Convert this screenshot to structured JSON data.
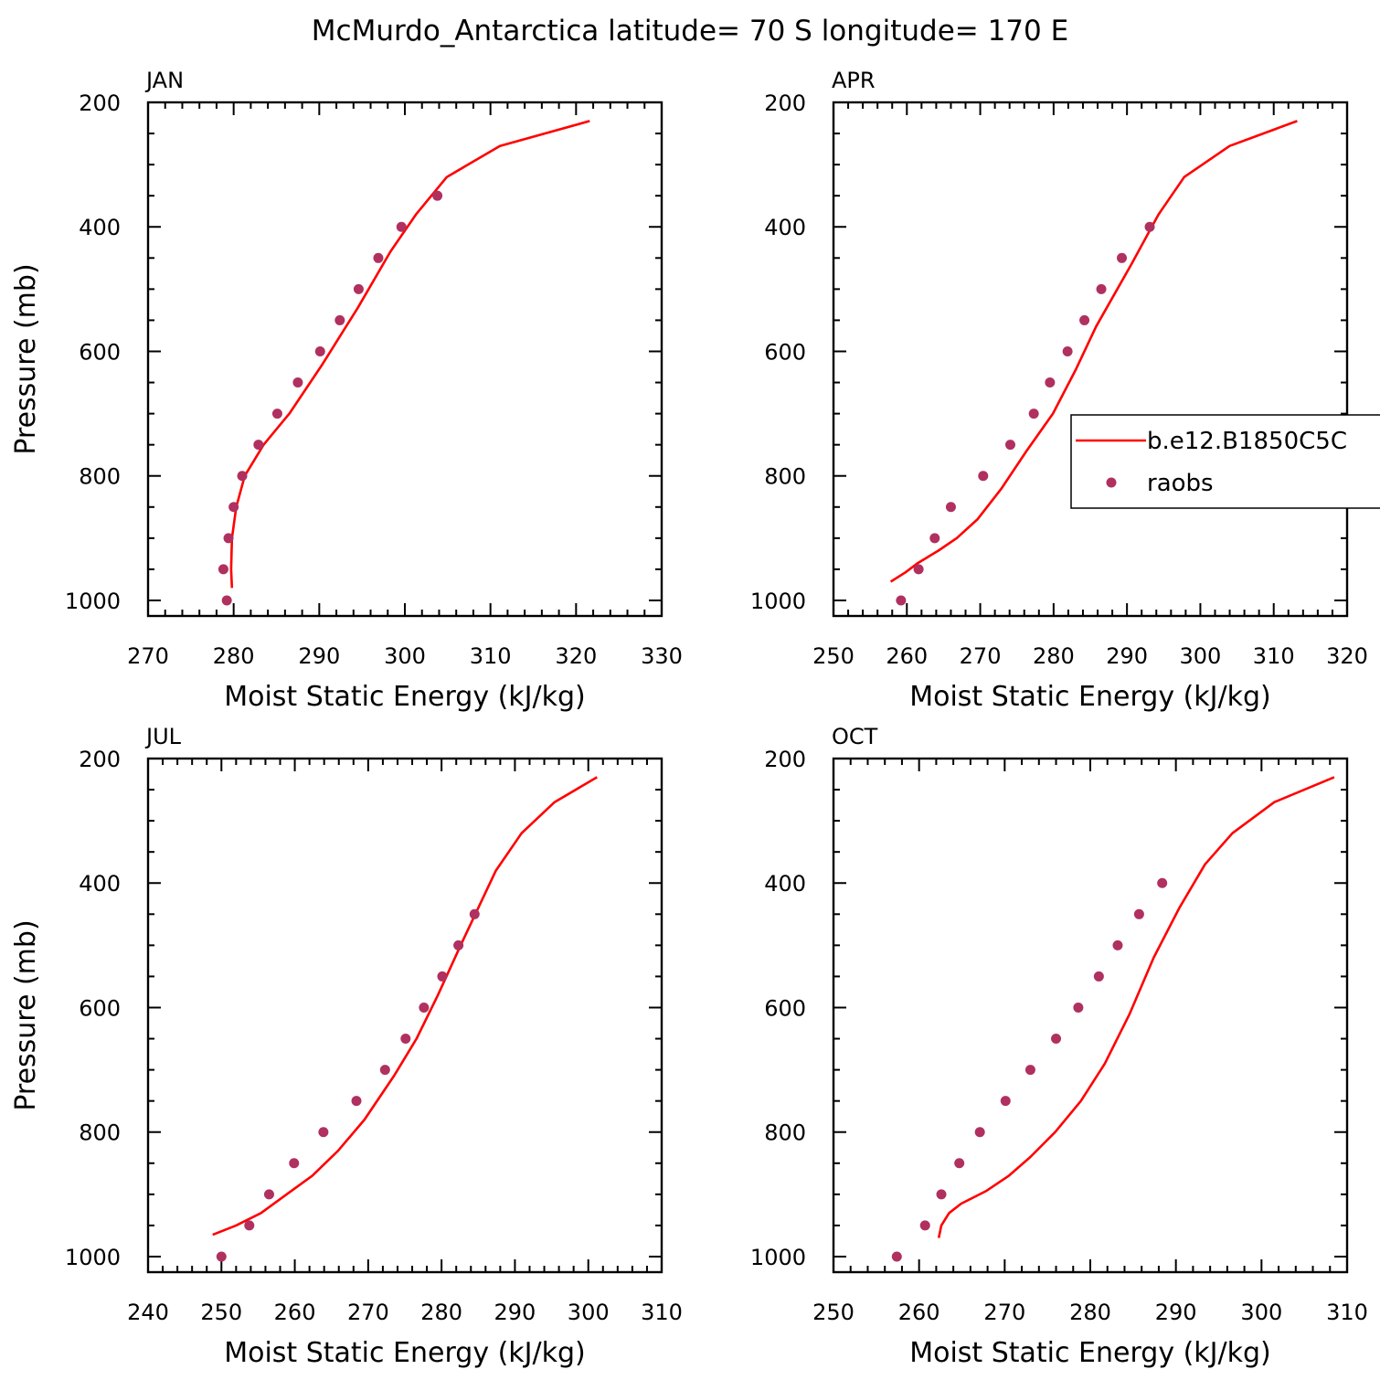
{
  "title": "McMurdo_Antarctica  latitude= 70 S longitude= 170 E",
  "colors": {
    "model_line": "#ff0000",
    "obs_marker": "#b03060",
    "axis": "#000000"
  },
  "legend": {
    "placement": "right-middle of APR panel, clipped at right edge",
    "entries": [
      {
        "label": "b.e12.B1850C5C",
        "style": "line"
      },
      {
        "label": "raobs",
        "style": "marker"
      }
    ]
  },
  "chart_data": [
    {
      "type": "line",
      "panel": "JAN",
      "title": "JAN",
      "xlabel": "Moist Static Energy (kJ/kg)",
      "ylabel": "Pressure (mb)",
      "xlim": [
        270,
        330
      ],
      "ylim": [
        1025,
        200
      ],
      "y_inverted": true,
      "xticks": [
        270,
        280,
        290,
        300,
        310,
        320,
        330
      ],
      "yticks": [
        200,
        400,
        600,
        800,
        1000
      ],
      "grid": false,
      "series": [
        {
          "name": "b.e12.B1850C5C",
          "style": "line",
          "x": [
            279.8,
            279.7,
            279.8,
            280.3,
            281.3,
            283.5,
            286.5,
            290.4,
            294.5,
            298.3,
            301.3,
            304.9,
            311.1,
            321.6
          ],
          "y": [
            980,
            950,
            900,
            850,
            800,
            750,
            700,
            620,
            530,
            440,
            380,
            320,
            270,
            230
          ]
        },
        {
          "name": "raobs",
          "style": "marker",
          "x": [
            279.2,
            278.8,
            279.4,
            280.0,
            281.0,
            282.9,
            285.1,
            287.5,
            290.1,
            292.4,
            294.6,
            296.9,
            299.6,
            303.8
          ],
          "y": [
            1000,
            950,
            900,
            850,
            800,
            750,
            700,
            650,
            600,
            550,
            500,
            450,
            400,
            350
          ]
        }
      ]
    },
    {
      "type": "line",
      "panel": "APR",
      "title": "APR",
      "xlabel": "Moist Static Energy (kJ/kg)",
      "ylabel": "",
      "xlim": [
        250,
        320
      ],
      "ylim": [
        1025,
        200
      ],
      "y_inverted": true,
      "xticks": [
        250,
        260,
        270,
        280,
        290,
        300,
        310,
        320
      ],
      "yticks": [
        200,
        400,
        600,
        800,
        1000
      ],
      "grid": false,
      "series": [
        {
          "name": "b.e12.B1850C5C",
          "style": "line",
          "x": [
            257.8,
            259.8,
            261.5,
            264.3,
            266.8,
            269.6,
            272.9,
            276.3,
            279.9,
            283.0,
            285.8,
            290.6,
            294.3,
            297.8,
            304.0,
            313.2
          ],
          "y": [
            970,
            955,
            940,
            920,
            900,
            870,
            820,
            760,
            700,
            630,
            560,
            460,
            380,
            320,
            270,
            230
          ]
        },
        {
          "name": "raobs",
          "style": "marker",
          "x": [
            259.2,
            261.6,
            263.8,
            266.0,
            270.4,
            274.1,
            277.3,
            279.5,
            281.9,
            284.2,
            286.5,
            289.3,
            293.1
          ],
          "y": [
            1000,
            950,
            900,
            850,
            800,
            750,
            700,
            650,
            600,
            550,
            500,
            450,
            400
          ]
        }
      ]
    },
    {
      "type": "line",
      "panel": "JUL",
      "title": "JUL",
      "xlabel": "Moist Static Energy (kJ/kg)",
      "ylabel": "Pressure (mb)",
      "xlim": [
        240,
        310
      ],
      "ylim": [
        1025,
        200
      ],
      "y_inverted": true,
      "xticks": [
        240,
        250,
        260,
        270,
        280,
        290,
        300,
        310
      ],
      "yticks": [
        200,
        400,
        600,
        800,
        1000
      ],
      "grid": false,
      "series": [
        {
          "name": "b.e12.B1850C5C",
          "style": "line",
          "x": [
            248.8,
            252.0,
            255.4,
            258.9,
            262.4,
            265.9,
            269.5,
            273.5,
            276.6,
            279.5,
            282.6,
            287.4,
            290.9,
            295.4,
            301.2
          ],
          "y": [
            965,
            950,
            930,
            900,
            870,
            830,
            780,
            710,
            650,
            580,
            500,
            380,
            320,
            270,
            230
          ]
        },
        {
          "name": "raobs",
          "style": "marker",
          "x": [
            250.0,
            253.8,
            256.5,
            259.9,
            263.9,
            268.4,
            272.3,
            275.1,
            277.6,
            280.1,
            282.3,
            284.5
          ],
          "y": [
            1000,
            950,
            900,
            850,
            800,
            750,
            700,
            650,
            600,
            550,
            500,
            450
          ]
        }
      ]
    },
    {
      "type": "line",
      "panel": "OCT",
      "title": "OCT",
      "xlabel": "Moist Static Energy (kJ/kg)",
      "ylabel": "",
      "xlim": [
        250,
        310
      ],
      "ylim": [
        1025,
        200
      ],
      "y_inverted": true,
      "xticks": [
        250,
        260,
        270,
        280,
        290,
        300,
        310
      ],
      "yticks": [
        200,
        400,
        600,
        800,
        1000
      ],
      "grid": false,
      "series": [
        {
          "name": "b.e12.B1850C5C",
          "style": "line",
          "x": [
            262.3,
            262.6,
            263.5,
            264.9,
            267.8,
            270.5,
            273.0,
            275.9,
            278.9,
            281.7,
            284.6,
            287.4,
            290.4,
            293.4,
            296.6,
            301.5,
            308.5
          ],
          "y": [
            970,
            950,
            930,
            915,
            895,
            870,
            840,
            800,
            750,
            690,
            610,
            520,
            440,
            370,
            320,
            270,
            230
          ]
        },
        {
          "name": "raobs",
          "style": "marker",
          "x": [
            257.4,
            260.7,
            262.6,
            264.7,
            267.1,
            270.1,
            273.0,
            276.0,
            278.6,
            281.0,
            283.2,
            285.7,
            288.4
          ],
          "y": [
            1000,
            950,
            900,
            850,
            800,
            750,
            700,
            650,
            600,
            550,
            500,
            450,
            400
          ]
        }
      ]
    }
  ]
}
